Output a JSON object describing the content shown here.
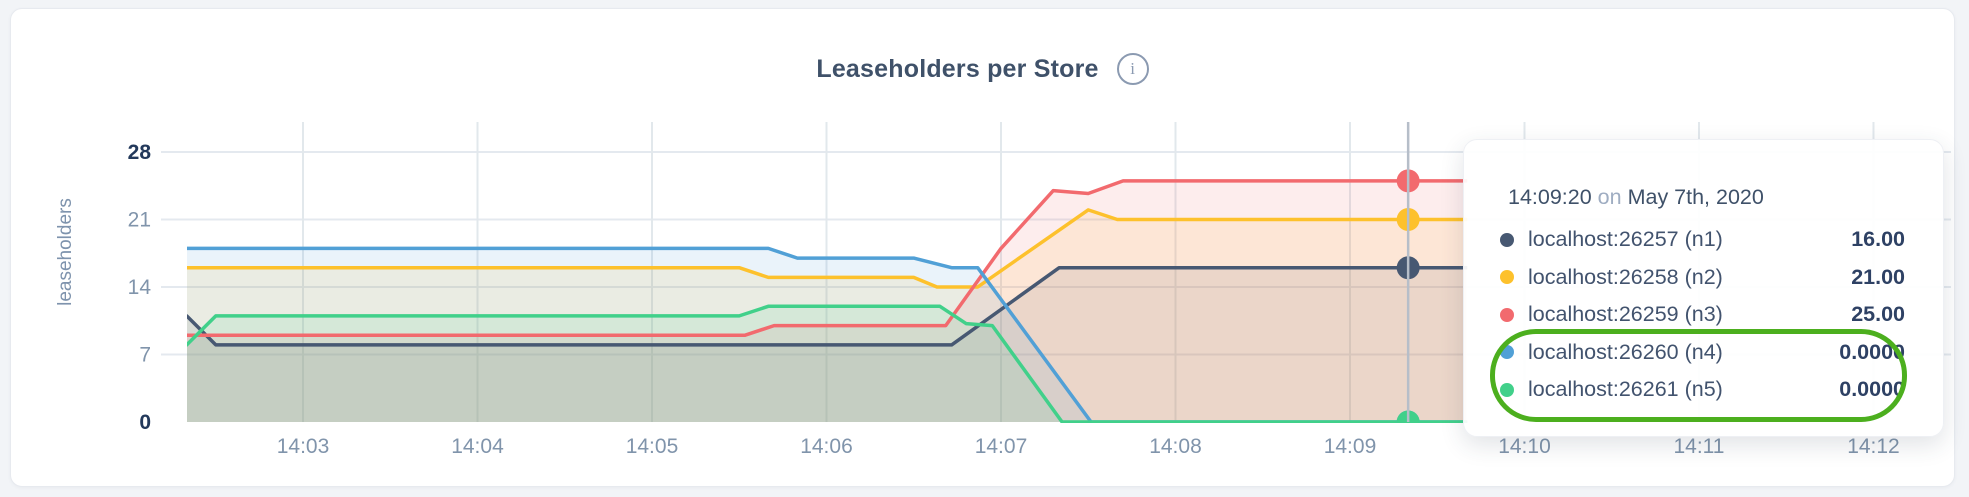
{
  "header": {
    "info_icon": "i"
  },
  "chart_data": {
    "type": "area",
    "title": "Leaseholders per Store",
    "ylabel": "leaseholders",
    "ylim": [
      0,
      28
    ],
    "grid": true,
    "x_unit": "seconds_after_14:02",
    "x_range": [
      20,
      460
    ],
    "y_ticks": [
      {
        "v": 0,
        "label": "0",
        "bold": true
      },
      {
        "v": 7,
        "label": "7",
        "bold": false
      },
      {
        "v": 14,
        "label": "14",
        "bold": false
      },
      {
        "v": 21,
        "label": "21",
        "bold": false
      },
      {
        "v": 28,
        "label": "28",
        "bold": true
      }
    ],
    "x_ticks": [
      {
        "t": 60,
        "label": "14:03"
      },
      {
        "t": 120,
        "label": "14:04"
      },
      {
        "t": 180,
        "label": "14:05"
      },
      {
        "t": 240,
        "label": "14:06"
      },
      {
        "t": 300,
        "label": "14:07"
      },
      {
        "t": 360,
        "label": "14:08"
      },
      {
        "t": 420,
        "label": "14:09"
      },
      {
        "t": 480,
        "label": "14:10"
      },
      {
        "t": 540,
        "label": "14:11"
      },
      {
        "t": 600,
        "label": "14:12"
      }
    ],
    "series": [
      {
        "name": "localhost:26257 (n1)",
        "color": "#475872",
        "points": [
          [
            20,
            11
          ],
          [
            30,
            8
          ],
          [
            283,
            8
          ],
          [
            320,
            16
          ],
          [
            460,
            16
          ]
        ]
      },
      {
        "name": "localhost:26258 (n2)",
        "color": "#fdc12c",
        "points": [
          [
            20,
            16
          ],
          [
            210,
            16
          ],
          [
            220,
            15
          ],
          [
            270,
            15
          ],
          [
            278,
            14
          ],
          [
            292,
            14
          ],
          [
            330,
            22
          ],
          [
            340,
            21
          ],
          [
            460,
            21
          ]
        ]
      },
      {
        "name": "localhost:26259 (n3)",
        "color": "#f26a6e",
        "points": [
          [
            20,
            9
          ],
          [
            212,
            9
          ],
          [
            222,
            10
          ],
          [
            281,
            10
          ],
          [
            300,
            18
          ],
          [
            318,
            24
          ],
          [
            330,
            23.7
          ],
          [
            342,
            25
          ],
          [
            460,
            25
          ]
        ]
      },
      {
        "name": "localhost:26260 (n4)",
        "color": "#51a0d6",
        "points": [
          [
            20,
            18
          ],
          [
            220,
            18
          ],
          [
            230,
            17
          ],
          [
            270,
            17
          ],
          [
            283,
            16
          ],
          [
            292,
            16
          ],
          [
            331,
            0
          ],
          [
            460,
            0
          ]
        ]
      },
      {
        "name": "localhost:26261 (n5)",
        "color": "#41d08a",
        "points": [
          [
            20,
            8
          ],
          [
            30,
            11
          ],
          [
            210,
            11
          ],
          [
            220,
            12
          ],
          [
            279,
            12
          ],
          [
            288,
            10.2
          ],
          [
            297,
            10
          ],
          [
            321,
            0
          ],
          [
            460,
            0
          ]
        ]
      }
    ],
    "hover": {
      "t": 440,
      "values": [
        16,
        21,
        25,
        0,
        0
      ]
    },
    "legend_position": "tooltip-right"
  },
  "tooltip": {
    "time": "14:09:20",
    "on_word": " on ",
    "date": "May 7th, 2020",
    "rows": [
      {
        "label": "localhost:26257 (n1)",
        "value": "16.00",
        "color": "#475872",
        "highlighted": false
      },
      {
        "label": "localhost:26258 (n2)",
        "value": "21.00",
        "color": "#fdc12c",
        "highlighted": false
      },
      {
        "label": "localhost:26259 (n3)",
        "value": "25.00",
        "color": "#f26a6e",
        "highlighted": false
      },
      {
        "label": "localhost:26260 (n4)",
        "value": "0.0000",
        "color": "#51a0d6",
        "highlighted": true
      },
      {
        "label": "localhost:26261 (n5)",
        "value": "0.0000",
        "color": "#41d08a",
        "highlighted": true
      }
    ],
    "annotation_color": "#4caf1e"
  },
  "colors": {
    "title_text": "#3f5169",
    "axis_text": "#8094ab",
    "axis_text_bold": "#23395b",
    "gridline": "#e4e9ef",
    "hover_line": "#b6bec9"
  }
}
